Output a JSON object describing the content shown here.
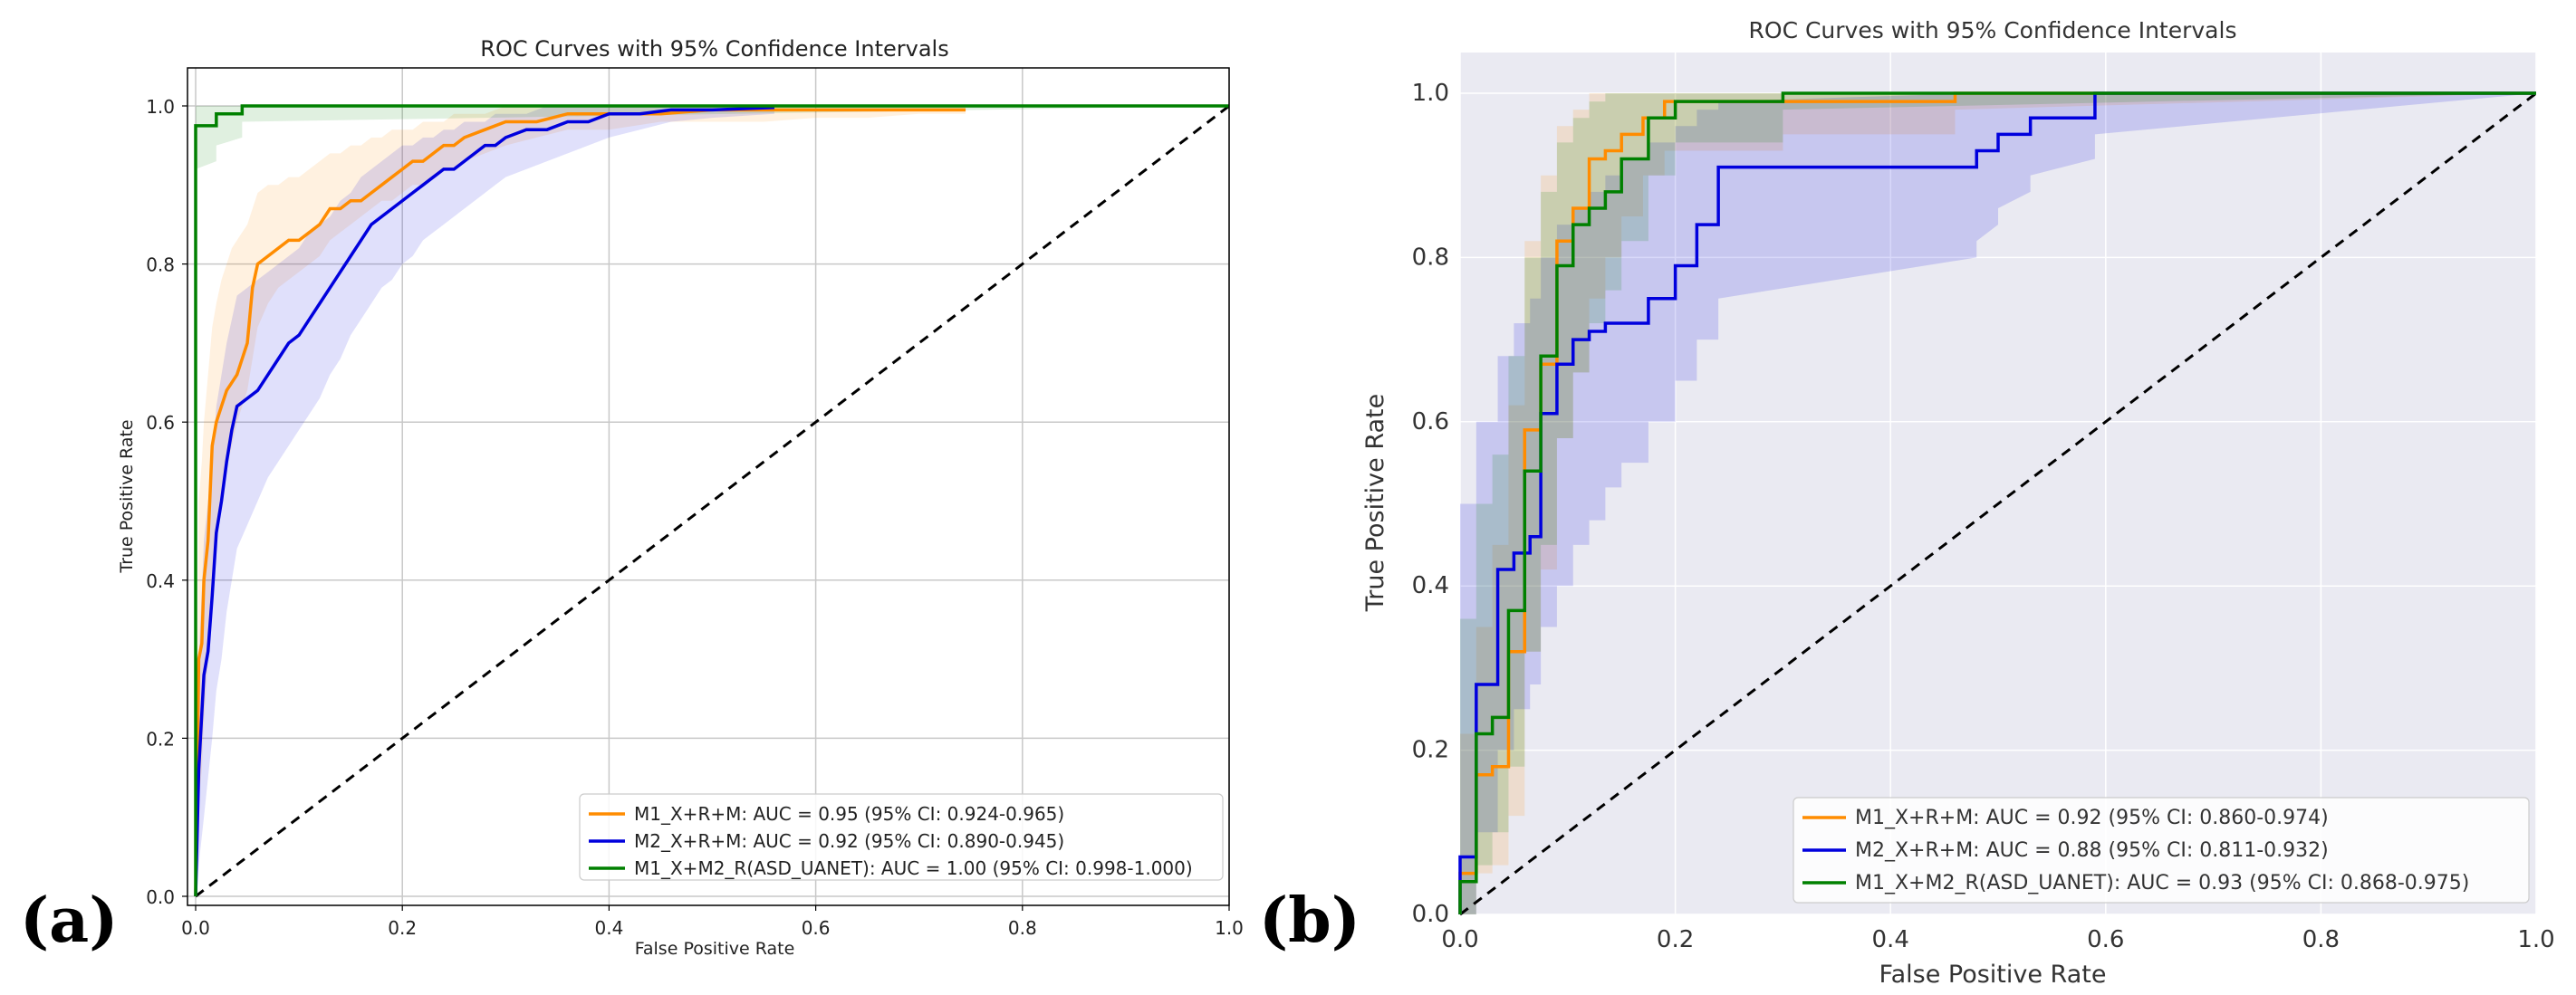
{
  "labels": {
    "panel_a": "(a)",
    "panel_b": "(b)"
  },
  "chart_data": [
    {
      "type": "line",
      "panel": "a",
      "title": "ROC Curves with 95% Confidence Intervals",
      "xlabel": "False Positive Rate",
      "ylabel": "True Positive Rate",
      "xlim": [
        0,
        1
      ],
      "ylim": [
        0,
        1
      ],
      "xticks": [
        "0.0",
        "0.2",
        "0.4",
        "0.6",
        "0.8",
        "1.0"
      ],
      "yticks": [
        "0.0",
        "0.2",
        "0.4",
        "0.6",
        "0.8",
        "1.0"
      ],
      "grid": true,
      "legend_position": "lower-right",
      "series": [
        {
          "name": "M1_X+R+M: AUC = 0.95 (95% CI: 0.924-0.965)",
          "color": "#ff8c00",
          "x": [
            0.0,
            0.003,
            0.006,
            0.008,
            0.012,
            0.016,
            0.02,
            0.025,
            0.03,
            0.035,
            0.04,
            0.045,
            0.05,
            0.055,
            0.06,
            0.07,
            0.08,
            0.09,
            0.1,
            0.11,
            0.12,
            0.13,
            0.14,
            0.15,
            0.16,
            0.17,
            0.18,
            0.19,
            0.2,
            0.21,
            0.22,
            0.23,
            0.24,
            0.25,
            0.26,
            0.28,
            0.3,
            0.33,
            0.36,
            0.4,
            0.45,
            0.5,
            0.55,
            0.6,
            0.65,
            0.7,
            0.745
          ],
          "y": [
            0.0,
            0.3,
            0.32,
            0.4,
            0.45,
            0.57,
            0.6,
            0.62,
            0.64,
            0.65,
            0.66,
            0.68,
            0.7,
            0.77,
            0.8,
            0.81,
            0.82,
            0.83,
            0.83,
            0.84,
            0.85,
            0.87,
            0.87,
            0.88,
            0.88,
            0.89,
            0.9,
            0.91,
            0.92,
            0.93,
            0.93,
            0.94,
            0.95,
            0.95,
            0.96,
            0.97,
            0.98,
            0.98,
            0.99,
            0.99,
            0.99,
            0.995,
            0.995,
            0.995,
            0.995,
            0.995,
            0.995
          ],
          "ci_lower": [
            0.0,
            0.12,
            0.16,
            0.22,
            0.3,
            0.4,
            0.45,
            0.5,
            0.54,
            0.57,
            0.6,
            0.62,
            0.64,
            0.68,
            0.72,
            0.75,
            0.77,
            0.78,
            0.79,
            0.8,
            0.81,
            0.83,
            0.84,
            0.85,
            0.86,
            0.87,
            0.88,
            0.88,
            0.89,
            0.9,
            0.9,
            0.91,
            0.92,
            0.92,
            0.93,
            0.94,
            0.95,
            0.96,
            0.97,
            0.97,
            0.98,
            0.98,
            0.98,
            0.985,
            0.985,
            0.99,
            0.99
          ],
          "ci_upper": [
            0.0,
            0.5,
            0.55,
            0.6,
            0.66,
            0.72,
            0.75,
            0.78,
            0.8,
            0.82,
            0.83,
            0.84,
            0.85,
            0.87,
            0.89,
            0.9,
            0.9,
            0.91,
            0.91,
            0.92,
            0.93,
            0.94,
            0.94,
            0.95,
            0.95,
            0.96,
            0.96,
            0.97,
            0.97,
            0.97,
            0.98,
            0.98,
            0.98,
            0.99,
            0.99,
            0.99,
            1.0,
            1.0,
            1.0,
            1.0,
            1.0,
            1.0,
            1.0,
            1.0,
            1.0,
            1.0,
            1.0
          ]
        },
        {
          "name": "M2_X+R+M: AUC = 0.92 (95% CI: 0.890-0.945)",
          "color": "#0000dd",
          "x": [
            0.0,
            0.003,
            0.008,
            0.012,
            0.016,
            0.02,
            0.025,
            0.03,
            0.035,
            0.04,
            0.05,
            0.06,
            0.07,
            0.08,
            0.09,
            0.1,
            0.11,
            0.12,
            0.13,
            0.14,
            0.15,
            0.16,
            0.17,
            0.18,
            0.19,
            0.2,
            0.21,
            0.22,
            0.23,
            0.24,
            0.25,
            0.26,
            0.27,
            0.28,
            0.29,
            0.3,
            0.32,
            0.34,
            0.36,
            0.38,
            0.4,
            0.43,
            0.46,
            0.5,
            0.56
          ],
          "y": [
            0.0,
            0.16,
            0.28,
            0.31,
            0.38,
            0.46,
            0.5,
            0.55,
            0.59,
            0.62,
            0.63,
            0.64,
            0.66,
            0.68,
            0.7,
            0.71,
            0.73,
            0.75,
            0.77,
            0.79,
            0.81,
            0.83,
            0.85,
            0.86,
            0.87,
            0.88,
            0.89,
            0.9,
            0.91,
            0.92,
            0.92,
            0.93,
            0.94,
            0.95,
            0.95,
            0.96,
            0.97,
            0.97,
            0.98,
            0.98,
            0.99,
            0.99,
            0.995,
            0.995,
            0.998
          ],
          "ci_lower": [
            0.0,
            0.04,
            0.1,
            0.15,
            0.2,
            0.26,
            0.3,
            0.36,
            0.4,
            0.44,
            0.47,
            0.5,
            0.53,
            0.55,
            0.57,
            0.59,
            0.61,
            0.63,
            0.66,
            0.68,
            0.71,
            0.73,
            0.75,
            0.77,
            0.78,
            0.8,
            0.81,
            0.83,
            0.84,
            0.85,
            0.86,
            0.87,
            0.88,
            0.89,
            0.9,
            0.91,
            0.92,
            0.93,
            0.94,
            0.95,
            0.96,
            0.97,
            0.98,
            0.985,
            0.99
          ],
          "ci_upper": [
            0.0,
            0.3,
            0.45,
            0.5,
            0.55,
            0.62,
            0.66,
            0.7,
            0.73,
            0.76,
            0.77,
            0.78,
            0.79,
            0.8,
            0.81,
            0.82,
            0.84,
            0.85,
            0.86,
            0.88,
            0.89,
            0.91,
            0.92,
            0.93,
            0.94,
            0.95,
            0.95,
            0.96,
            0.96,
            0.97,
            0.97,
            0.98,
            0.98,
            0.98,
            0.99,
            0.99,
            0.99,
            1.0,
            1.0,
            1.0,
            1.0,
            1.0,
            1.0,
            1.0,
            1.0
          ]
        },
        {
          "name": "M1_X+M2_R(ASD_UANET): AUC = 1.00 (95% CI: 0.998-1.000)",
          "color": "#008000",
          "x": [
            0.0,
            0.0,
            0.02,
            0.02,
            0.045,
            0.045,
            1.0
          ],
          "y": [
            0.0,
            0.975,
            0.975,
            0.99,
            0.99,
            1.0,
            1.0
          ],
          "ci_lower": [
            0.0,
            0.92,
            0.93,
            0.95,
            0.96,
            0.98,
            1.0
          ],
          "ci_upper": [
            0.0,
            1.0,
            1.0,
            1.0,
            1.0,
            1.0,
            1.0
          ]
        }
      ]
    },
    {
      "type": "line",
      "panel": "b",
      "title": "ROC Curves with 95% Confidence Intervals",
      "xlabel": "False Positive Rate",
      "ylabel": "True Positive Rate",
      "xlim": [
        0,
        1
      ],
      "ylim": [
        0,
        1
      ],
      "xticks": [
        "0.0",
        "0.2",
        "0.4",
        "0.6",
        "0.8",
        "1.0"
      ],
      "yticks": [
        "0.0",
        "0.2",
        "0.4",
        "0.6",
        "0.8",
        "1.0"
      ],
      "grid": true,
      "legend_position": "lower-right",
      "series": [
        {
          "name": "M1_X+R+M: AUC = 0.92 (95% CI: 0.860-0.974)",
          "color": "#ff8c00",
          "x": [
            0.0,
            0.0,
            0.015,
            0.015,
            0.03,
            0.03,
            0.045,
            0.045,
            0.06,
            0.06,
            0.075,
            0.075,
            0.09,
            0.09,
            0.105,
            0.105,
            0.12,
            0.12,
            0.135,
            0.135,
            0.15,
            0.15,
            0.17,
            0.17,
            0.19,
            0.19,
            0.3,
            0.3,
            0.46,
            0.46,
            1.0
          ],
          "y": [
            0.0,
            0.05,
            0.05,
            0.17,
            0.17,
            0.18,
            0.18,
            0.32,
            0.32,
            0.59,
            0.59,
            0.67,
            0.67,
            0.82,
            0.82,
            0.86,
            0.86,
            0.92,
            0.92,
            0.93,
            0.93,
            0.95,
            0.95,
            0.97,
            0.97,
            0.99,
            0.99,
            0.99,
            0.99,
            1.0,
            1.0
          ],
          "ci_lower": [
            0.0,
            0.0,
            0.0,
            0.05,
            0.05,
            0.06,
            0.06,
            0.12,
            0.12,
            0.32,
            0.32,
            0.42,
            0.42,
            0.58,
            0.58,
            0.66,
            0.66,
            0.75,
            0.75,
            0.8,
            0.8,
            0.85,
            0.85,
            0.9,
            0.9,
            0.93,
            0.93,
            0.95,
            0.95,
            0.98,
            1.0
          ],
          "ci_upper": [
            0.0,
            0.22,
            0.22,
            0.35,
            0.35,
            0.45,
            0.45,
            0.62,
            0.62,
            0.82,
            0.82,
            0.9,
            0.9,
            0.96,
            0.96,
            0.98,
            0.98,
            1.0,
            1.0,
            1.0,
            1.0,
            1.0,
            1.0,
            1.0,
            1.0,
            1.0,
            1.0,
            1.0,
            1.0,
            1.0,
            1.0
          ]
        },
        {
          "name": "M2_X+R+M: AUC = 0.88 (95% CI: 0.811-0.932)",
          "color": "#0000dd",
          "x": [
            0.0,
            0.0,
            0.015,
            0.015,
            0.035,
            0.035,
            0.05,
            0.05,
            0.065,
            0.065,
            0.075,
            0.075,
            0.09,
            0.09,
            0.105,
            0.105,
            0.12,
            0.12,
            0.135,
            0.135,
            0.15,
            0.15,
            0.175,
            0.175,
            0.2,
            0.2,
            0.22,
            0.22,
            0.24,
            0.24,
            0.48,
            0.48,
            0.5,
            0.5,
            0.53,
            0.53,
            0.59,
            0.59,
            1.0
          ],
          "y": [
            0.0,
            0.07,
            0.07,
            0.28,
            0.28,
            0.42,
            0.42,
            0.44,
            0.44,
            0.46,
            0.46,
            0.61,
            0.61,
            0.67,
            0.67,
            0.7,
            0.7,
            0.71,
            0.71,
            0.72,
            0.72,
            0.72,
            0.72,
            0.75,
            0.75,
            0.79,
            0.79,
            0.84,
            0.84,
            0.91,
            0.91,
            0.93,
            0.93,
            0.95,
            0.95,
            0.97,
            0.97,
            1.0,
            1.0
          ],
          "ci_lower": [
            0.0,
            0.0,
            0.0,
            0.1,
            0.1,
            0.2,
            0.2,
            0.25,
            0.25,
            0.28,
            0.28,
            0.35,
            0.35,
            0.4,
            0.4,
            0.45,
            0.45,
            0.48,
            0.48,
            0.52,
            0.52,
            0.55,
            0.55,
            0.6,
            0.6,
            0.65,
            0.65,
            0.7,
            0.7,
            0.75,
            0.8,
            0.82,
            0.84,
            0.86,
            0.88,
            0.9,
            0.92,
            0.95,
            1.0
          ],
          "ci_upper": [
            0.0,
            0.5,
            0.5,
            0.6,
            0.6,
            0.68,
            0.68,
            0.72,
            0.72,
            0.75,
            0.75,
            0.8,
            0.8,
            0.84,
            0.84,
            0.86,
            0.86,
            0.88,
            0.88,
            0.9,
            0.9,
            0.92,
            0.92,
            0.94,
            0.94,
            0.96,
            0.96,
            0.98,
            0.98,
            0.99,
            1.0,
            1.0,
            1.0,
            1.0,
            1.0,
            1.0,
            1.0,
            1.0,
            1.0
          ]
        },
        {
          "name": "M1_X+M2_R(ASD_UANET): AUC = 0.93 (95% CI: 0.868-0.975)",
          "color": "#008000",
          "x": [
            0.0,
            0.0,
            0.015,
            0.015,
            0.03,
            0.03,
            0.045,
            0.045,
            0.06,
            0.06,
            0.075,
            0.075,
            0.09,
            0.09,
            0.105,
            0.105,
            0.12,
            0.12,
            0.135,
            0.135,
            0.15,
            0.15,
            0.175,
            0.175,
            0.2,
            0.2,
            0.3,
            0.3,
            1.0
          ],
          "y": [
            0.0,
            0.04,
            0.04,
            0.22,
            0.22,
            0.24,
            0.24,
            0.37,
            0.37,
            0.54,
            0.54,
            0.68,
            0.68,
            0.79,
            0.79,
            0.84,
            0.84,
            0.86,
            0.86,
            0.88,
            0.88,
            0.92,
            0.92,
            0.97,
            0.97,
            0.99,
            0.99,
            1.0,
            1.0
          ],
          "ci_lower": [
            0.0,
            0.0,
            0.0,
            0.06,
            0.06,
            0.1,
            0.1,
            0.18,
            0.18,
            0.32,
            0.32,
            0.45,
            0.45,
            0.58,
            0.58,
            0.66,
            0.66,
            0.72,
            0.72,
            0.76,
            0.76,
            0.82,
            0.82,
            0.9,
            0.9,
            0.94,
            0.94,
            0.98,
            1.0
          ],
          "ci_upper": [
            0.0,
            0.36,
            0.36,
            0.5,
            0.5,
            0.56,
            0.56,
            0.68,
            0.68,
            0.8,
            0.8,
            0.88,
            0.88,
            0.94,
            0.94,
            0.97,
            0.97,
            0.99,
            0.99,
            1.0,
            1.0,
            1.0,
            1.0,
            1.0,
            1.0,
            1.0,
            1.0,
            1.0,
            1.0
          ]
        }
      ]
    }
  ]
}
